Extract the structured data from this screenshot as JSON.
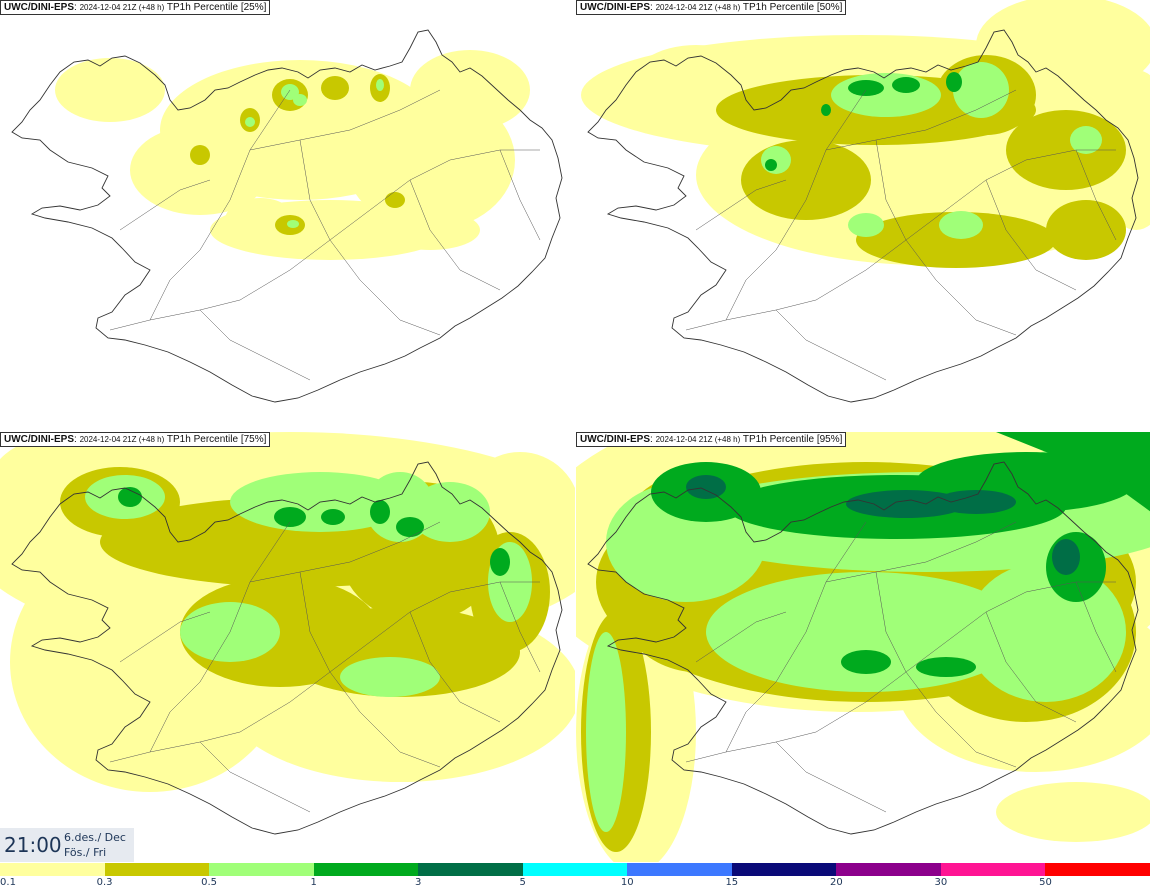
{
  "panels": [
    {
      "model": "UWC/DINI-EPS",
      "run": "2024-12-04 21Z (+48 h)",
      "product": "TP1h Percentile [25%]",
      "level": 25
    },
    {
      "model": "UWC/DINI-EPS",
      "run": "2024-12-04 21Z (+48 h)",
      "product": "TP1h Percentile [50%]",
      "level": 50
    },
    {
      "model": "UWC/DINI-EPS",
      "run": "2024-12-04 21Z (+48 h)",
      "product": "TP1h Percentile [75%]",
      "level": 75
    },
    {
      "model": "UWC/DINI-EPS",
      "run": "2024-12-04 21Z (+48 h)",
      "product": "TP1h Percentile [95%]",
      "level": 95
    }
  ],
  "valid_time": {
    "time": "21:00",
    "date_line1": "6.des./ Dec",
    "date_line2": "Fös./ Fri"
  },
  "legend": {
    "ticks": [
      "0.1",
      "0.3",
      "0.5",
      "1",
      "3",
      "5",
      "10",
      "15",
      "20",
      "30",
      "50"
    ],
    "colors": [
      "#ffff9e",
      "#c8c800",
      "#a0ff78",
      "#00aa1e",
      "#006e46",
      "#00ffff",
      "#3c78ff",
      "#0a0a78",
      "#8c008c",
      "#ff1493",
      "#ff0000"
    ]
  }
}
